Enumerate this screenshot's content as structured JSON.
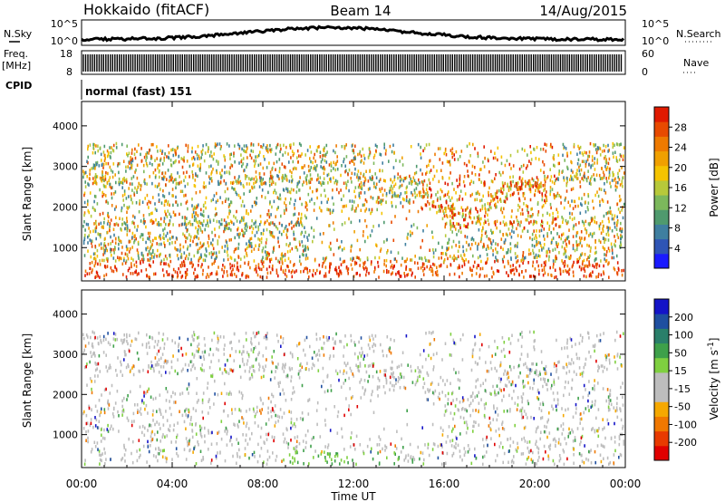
{
  "header": {
    "station": "Hokkaido (fitACF)",
    "beam": "Beam 14",
    "date": "14/Aug/2015"
  },
  "noise_panel": {
    "left_label": "N.Sky",
    "right_label": "N.Search",
    "ticks_left": [
      "10^5",
      "10^0"
    ],
    "ticks_right": [
      "10^5",
      "10^0"
    ]
  },
  "freq_panel": {
    "left_label_1": "Freq.",
    "left_label_2": "[MHz]",
    "right_label": "Nave",
    "ticks_left": [
      "18",
      "8"
    ],
    "ticks_right": [
      "60",
      "0"
    ]
  },
  "cpid_panel": {
    "label": "CPID",
    "value": "normal (fast) 151"
  },
  "colors": {
    "power_scale": [
      "#1a1aff",
      "#2f55b5",
      "#3f7fa0",
      "#4f9a6e",
      "#7cb85c",
      "#b7c93a",
      "#f5c400",
      "#f0a000",
      "#ee7a00",
      "#e84a00",
      "#e01a00"
    ],
    "velocity_scale": [
      "#e00000",
      "#e83a00",
      "#f07800",
      "#f5a800",
      "#bdbdbd",
      "#bdbdbd",
      "#7fd040",
      "#3ea04a",
      "#2a7f6a",
      "#1f4fa0",
      "#1414c8"
    ]
  },
  "chart_data": [
    {
      "type": "heatmap",
      "name": "power",
      "ylabel": "Slant Range [km]",
      "yticks": [
        "1000",
        "2000",
        "3000",
        "4000"
      ],
      "ylim": [
        180,
        4600
      ],
      "xlim_hours": [
        0,
        24
      ],
      "colorbar_label": "Power [dB]",
      "colorbar_ticks": [
        "4",
        "8",
        "12",
        "16",
        "20",
        "24",
        "28"
      ],
      "colorbar_range": [
        0,
        30
      ]
    },
    {
      "type": "heatmap",
      "name": "velocity",
      "ylabel": "Slant Range [km]",
      "yticks": [
        "1000",
        "2000",
        "3000",
        "4000"
      ],
      "ylim": [
        180,
        4600
      ],
      "xlim_hours": [
        0,
        24
      ],
      "colorbar_label": "Velocity [m s",
      "colorbar_label_sup": "-1",
      "colorbar_label_end": "]",
      "colorbar_ticks": [
        "-200",
        "-100",
        "-50",
        "-15",
        "15",
        "50",
        "100",
        "200"
      ]
    }
  ],
  "x_axis": {
    "label": "Time UT",
    "ticks": [
      "00:00",
      "04:00",
      "08:00",
      "12:00",
      "16:00",
      "20:00",
      "00:00"
    ]
  }
}
